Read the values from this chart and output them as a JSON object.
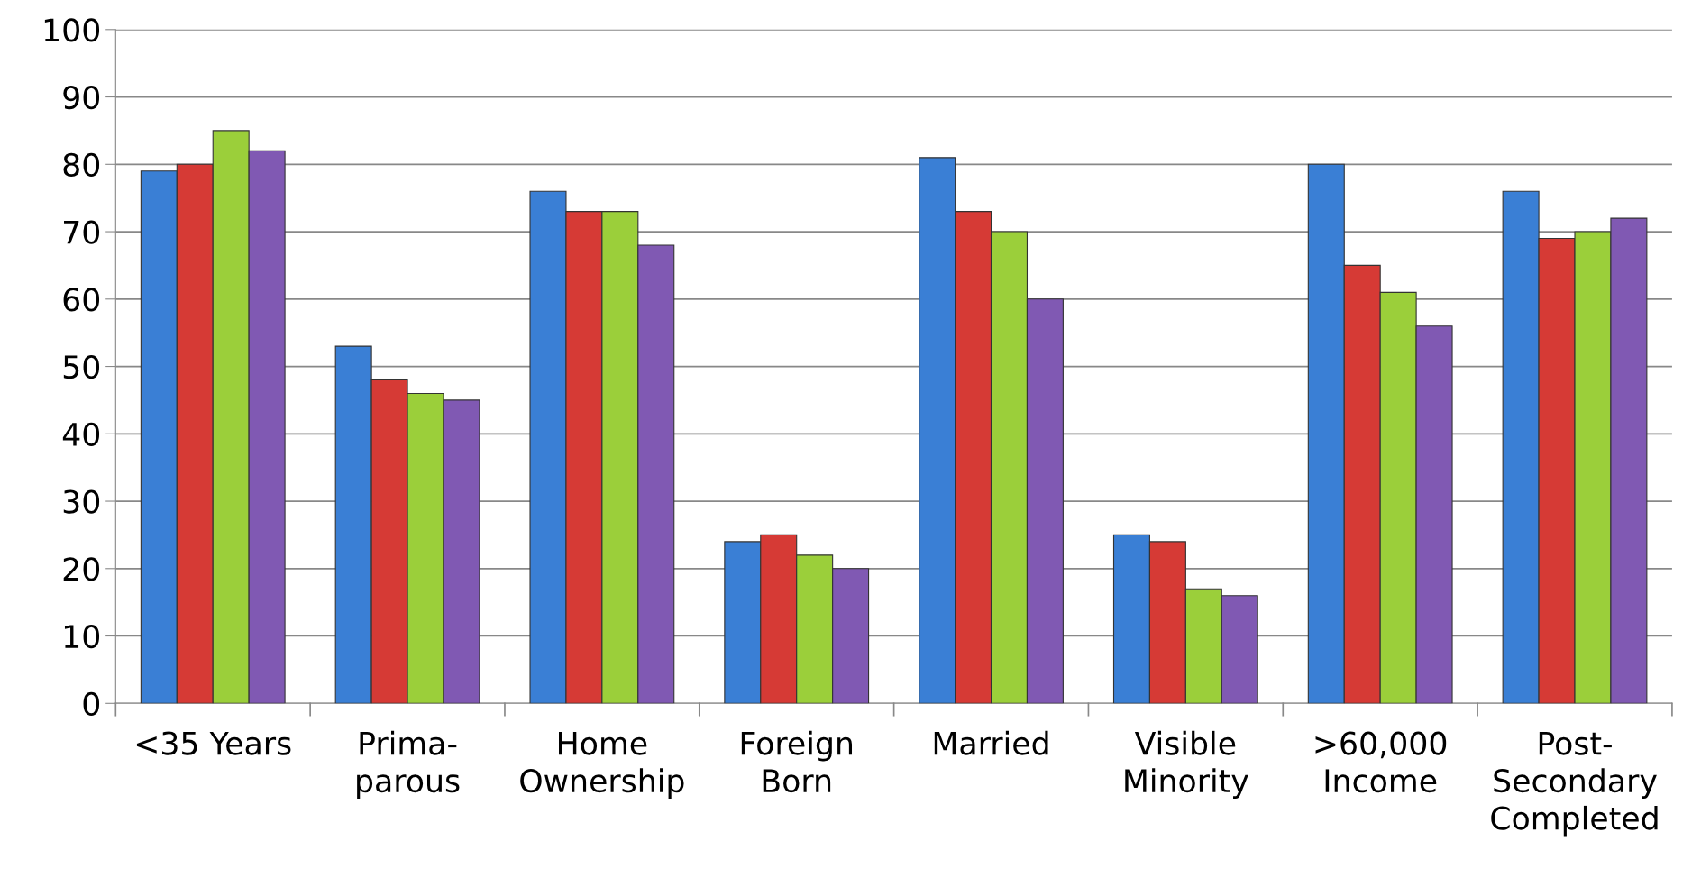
{
  "chart_data": {
    "type": "bar",
    "categories": [
      "<35 Years",
      "Prima-\nparous",
      "Home\nOwnership",
      "Foreign\nBorn",
      "Married",
      "Visible\nMinority",
      ">60,000\nIncome",
      "Post-\nSecondary\nCompleted"
    ],
    "series": [
      {
        "color": "#3a7fd5",
        "values": [
          79,
          53,
          76,
          24,
          81,
          25,
          80,
          76
        ]
      },
      {
        "color": "#d63a35",
        "values": [
          80,
          48,
          73,
          25,
          73,
          24,
          65,
          69
        ]
      },
      {
        "color": "#9bcf3a",
        "values": [
          85,
          46,
          73,
          22,
          70,
          17,
          61,
          70
        ]
      },
      {
        "color": "#8059b3",
        "values": [
          82,
          45,
          68,
          20,
          60,
          16,
          56,
          72
        ]
      }
    ],
    "ylim": [
      0,
      100
    ],
    "yticks": [
      0,
      10,
      20,
      30,
      40,
      50,
      60,
      70,
      80,
      90,
      100
    ],
    "grid": "y",
    "legend": false
  }
}
